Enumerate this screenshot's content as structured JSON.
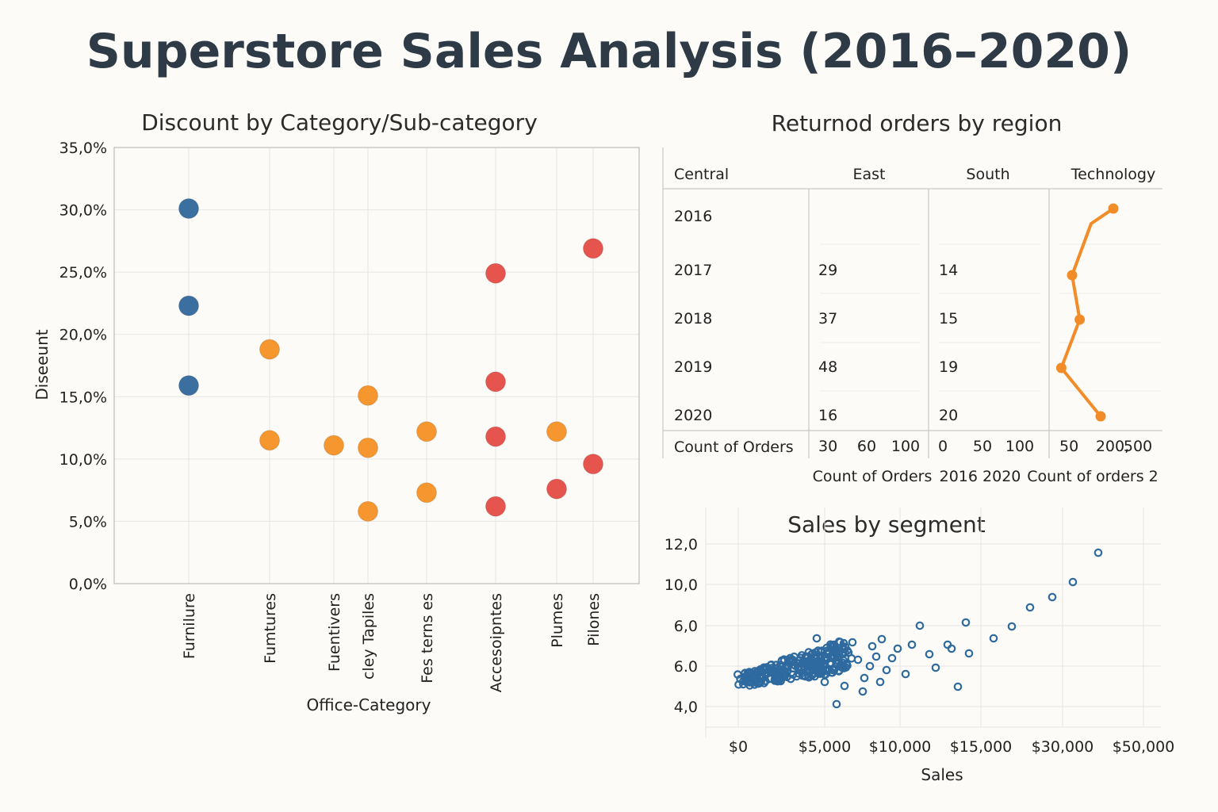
{
  "page": {
    "title": "Superstore Sales Analysis (2016–2020)"
  },
  "chart_data": [
    {
      "type": "scatter",
      "title": "Discount by Category/Sub-category",
      "xlabel": "Office-Category",
      "ylabel": "Diseeunt",
      "yticks": [
        "0,0%",
        "5,0%",
        "10,0%",
        "15,0%",
        "20,0%",
        "25,0%",
        "30,0%",
        "35,0%"
      ],
      "ylim": [
        0,
        35
      ],
      "categories": [
        "Furnilure",
        "Fumtures",
        "Fuentivers",
        "cley Tapiles",
        "Fes terns es",
        "Accesoipntes",
        "Plumes",
        "Pilones"
      ],
      "points": [
        {
          "category": "Furnilure",
          "value": 30.1,
          "color": "#3a6fa0"
        },
        {
          "category": "Furnilure",
          "value": 22.3,
          "color": "#3a6fa0"
        },
        {
          "category": "Furnilure",
          "value": 15.9,
          "color": "#3a6fa0"
        },
        {
          "category": "Fumtures",
          "value": 18.8,
          "color": "#f5962f"
        },
        {
          "category": "Fumtures",
          "value": 11.5,
          "color": "#f5962f"
        },
        {
          "category": "Fuentivers",
          "value": 11.1,
          "color": "#f5962f"
        },
        {
          "category": "cley Tapiles",
          "value": 15.1,
          "color": "#f5962f"
        },
        {
          "category": "cley Tapiles",
          "value": 10.9,
          "color": "#f5962f"
        },
        {
          "category": "cley Tapiles",
          "value": 5.8,
          "color": "#f5962f"
        },
        {
          "category": "Fes terns es",
          "value": 12.2,
          "color": "#f5962f"
        },
        {
          "category": "Fes terns es",
          "value": 7.3,
          "color": "#f5962f"
        },
        {
          "category": "Accesoipntes",
          "value": 24.9,
          "color": "#e5554d"
        },
        {
          "category": "Accesoipntes",
          "value": 16.2,
          "color": "#e5554d"
        },
        {
          "category": "Accesoipntes",
          "value": 11.8,
          "color": "#e5554d"
        },
        {
          "category": "Accesoipntes",
          "value": 6.2,
          "color": "#e5554d"
        },
        {
          "category": "Plumes",
          "value": 12.2,
          "color": "#f5962f"
        },
        {
          "category": "Plumes",
          "value": 7.6,
          "color": "#e5554d"
        },
        {
          "category": "Pilones",
          "value": 26.9,
          "color": "#e5554d"
        },
        {
          "category": "Pilones",
          "value": 9.6,
          "color": "#e5554d"
        }
      ]
    },
    {
      "type": "table",
      "title": "Returnod orders by region",
      "columns": [
        "Central",
        "East",
        "South",
        "Technology"
      ],
      "rows": [
        {
          "year": "2016",
          "east": "",
          "south": ""
        },
        {
          "year": "2017",
          "east": "29",
          "south": "14"
        },
        {
          "year": "2018",
          "east": "37",
          "south": "15"
        },
        {
          "year": "2019",
          "east": "48",
          "south": "19"
        },
        {
          "year": "2020",
          "east": "16",
          "south": "20"
        }
      ],
      "footer_label": "Count of Orders",
      "axis_east": [
        "30",
        "60",
        "100"
      ],
      "axis_south": [
        "0",
        "50",
        "100"
      ],
      "axis_tech": [
        "50",
        "200,",
        "500"
      ],
      "technology_line": {
        "color": "#f28c28",
        "values": [
          0.85,
          0.5,
          0.2,
          0.32,
          0.03,
          0.65
        ]
      },
      "bottom_labels": [
        "Count of Orders",
        "2016 2020",
        "Count of orders 2"
      ]
    },
    {
      "type": "scatter",
      "title": "Sales by segment",
      "xlabel": "Sales",
      "xticks": [
        "$0",
        "$5,000",
        "$10,000",
        "$15,000",
        "$30,000",
        "$50,000"
      ],
      "yticks": [
        "4,0",
        "6.0",
        "6,0",
        "10,0",
        "12,0"
      ],
      "color": "#2e6a9f"
    }
  ]
}
